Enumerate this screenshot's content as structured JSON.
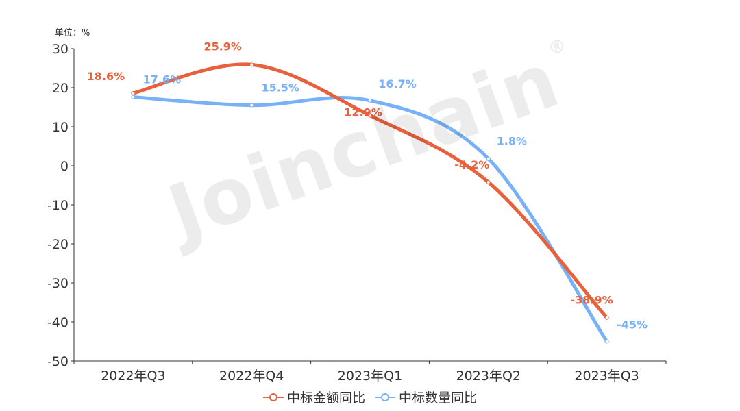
{
  "unit_label": "单位：%",
  "watermark": "Joinchain",
  "watermark_mark": "®",
  "colors": {
    "amount": "#E8603C",
    "count": "#77B1F7",
    "axis": "#333333"
  },
  "chart_data": {
    "type": "line",
    "categories": [
      "2022年Q3",
      "2022年Q4",
      "2023年Q1",
      "2023年Q2",
      "2023年Q3"
    ],
    "ylim": [
      -50,
      30
    ],
    "yticks": [
      30,
      20,
      10,
      0,
      -10,
      -20,
      -30,
      -40,
      -50
    ],
    "grid": false,
    "legend_position": "bottom",
    "series": [
      {
        "name": "中标金额同比",
        "values": [
          18.6,
          25.9,
          12.9,
          -4.2,
          -38.9
        ],
        "labels": [
          "18.6%",
          "25.9%",
          "12.9%",
          "-4.2%",
          "-38.9%"
        ]
      },
      {
        "name": "中标数量同比",
        "values": [
          17.6,
          15.5,
          16.7,
          1.8,
          -45
        ],
        "labels": [
          "17.6%",
          "15.5%",
          "16.7%",
          "1.8%",
          "-45%"
        ]
      }
    ]
  }
}
